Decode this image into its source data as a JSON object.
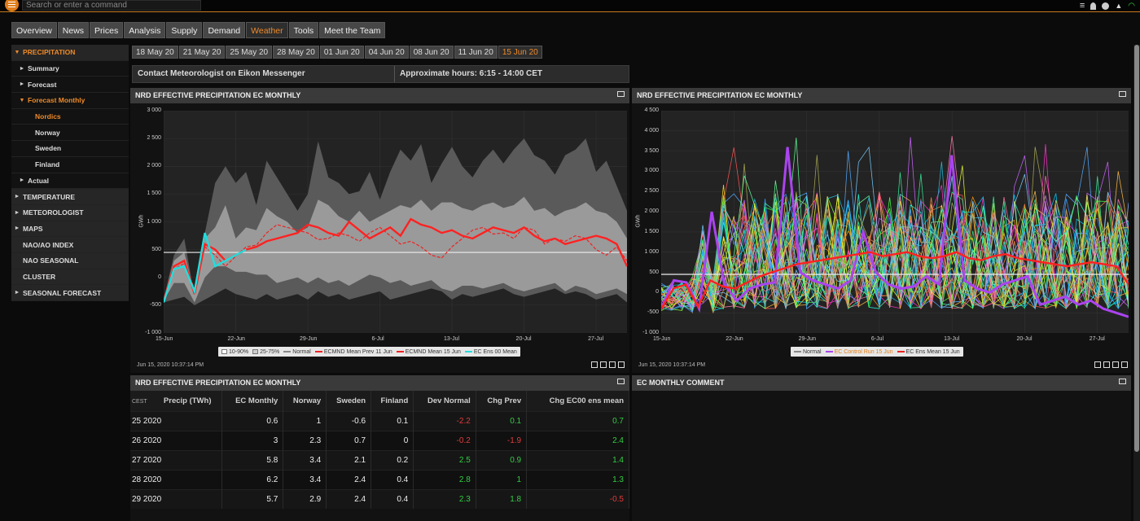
{
  "topbar": {
    "placeholder": "Search or enter a command"
  },
  "tabs": [
    "Overview",
    "News",
    "Prices",
    "Analysis",
    "Supply",
    "Demand",
    "Weather",
    "Tools",
    "Meet the Team"
  ],
  "active_tab": 6,
  "sidebar": [
    {
      "label": "PRECIPITATION",
      "level": 0,
      "arrow": "down",
      "sel": true
    },
    {
      "label": "Summary",
      "level": 1,
      "arrow": "right"
    },
    {
      "label": "Forecast",
      "level": 1,
      "arrow": "right"
    },
    {
      "label": "Forecast Monthly",
      "level": 1,
      "arrow": "down",
      "sel": true
    },
    {
      "label": "Nordics",
      "level": 2,
      "sel": true
    },
    {
      "label": "Norway",
      "level": 2
    },
    {
      "label": "Sweden",
      "level": 2
    },
    {
      "label": "Finland",
      "level": 2
    },
    {
      "label": "Actual",
      "level": 1,
      "arrow": "right"
    },
    {
      "label": "TEMPERATURE",
      "level": 0,
      "arrow": "right"
    },
    {
      "label": "METEOROLOGIST",
      "level": 0,
      "arrow": "right"
    },
    {
      "label": "MAPS",
      "level": 0,
      "arrow": "right"
    },
    {
      "label": "NAO/AO INDEX",
      "level": 0
    },
    {
      "label": "NAO SEASONAL",
      "level": 0
    },
    {
      "label": "CLUSTER",
      "level": 0
    },
    {
      "label": "SEASONAL FORECAST",
      "level": 0,
      "arrow": "right"
    }
  ],
  "dates": [
    "18 May 20",
    "21 May 20",
    "25 May 20",
    "28 May 20",
    "01 Jun 20",
    "04 Jun 20",
    "08 Jun 20",
    "11 Jun 20",
    "15 Jun 20"
  ],
  "active_date": 8,
  "contact": {
    "left": "Contact Meteorologist on Eikon Messenger",
    "right": "Approximate hours: 6:15 - 14:00 CET"
  },
  "chart1": {
    "title": "NRD EFFECTIVE PRECIPITATION EC MONTHLY",
    "stamp": "Jun 15, 2020 10:37:14 PM",
    "ylabel": "GWh",
    "yticks": [
      "3 000",
      "2 500",
      "2 000",
      "1 500",
      "1 000",
      "500",
      "0",
      "-500",
      "-1 000"
    ],
    "xticks": [
      "15-Jun",
      "22-Jun",
      "29-Jun",
      "6-Jul",
      "13-Jul",
      "20-Jul",
      "27-Jul"
    ],
    "legend": [
      "10-90%",
      "25-75%",
      "Normal",
      "ECMND Mean Prev 11 Jun",
      "ECMND Mean 15 Jun",
      "EC Ens 00 Mean"
    ]
  },
  "chart2": {
    "title": "NRD EFFECTIVE PRECIPITATION EC MONTHLY",
    "stamp": "Jun 15, 2020 10:37:14 PM",
    "ylabel": "GWh",
    "yticks": [
      "4 500",
      "4 000",
      "3 500",
      "3 000",
      "2 500",
      "2 000",
      "1 500",
      "1 000",
      "500",
      "0",
      "-500",
      "-1 000"
    ],
    "xticks": [
      "15-Jun",
      "22-Jun",
      "29-Jun",
      "6-Jul",
      "13-Jul",
      "20-Jul",
      "27-Jul"
    ],
    "legend": [
      "Normal",
      "EC Control Run 15 Jun",
      "EC Ens Mean 15 Jun"
    ]
  },
  "chart_data": [
    {
      "type": "area",
      "ylabel": "GWh",
      "ylim": [
        -1000,
        3000
      ],
      "x_days": [
        0,
        1,
        2,
        3,
        4,
        5,
        6,
        7,
        8,
        9,
        10,
        11,
        12,
        13,
        14,
        15,
        16,
        17,
        18,
        19,
        20,
        21,
        22,
        23,
        24,
        25,
        26,
        27,
        28,
        29,
        30,
        31,
        32,
        33,
        34,
        35,
        36,
        37,
        38,
        39,
        40,
        41,
        42,
        43,
        44,
        45
      ],
      "series": [
        {
          "name": "10-90%",
          "upper": [
            -400,
            400,
            700,
            -350,
            800,
            1700,
            2000,
            1700,
            1900,
            1300,
            2100,
            1800,
            1500,
            1200,
            1500,
            2450,
            1800,
            1700,
            1500,
            1550,
            1900,
            1400,
            1900,
            2300,
            2100,
            2400,
            1700,
            2050,
            2350,
            2000,
            1800,
            2100,
            2300,
            2050,
            2300,
            2500,
            2200,
            2100,
            1850,
            2200,
            2300,
            2500,
            1900,
            2100,
            1650,
            1200
          ],
          "lower": [
            -450,
            -400,
            -350,
            -500,
            -400,
            -300,
            -200,
            -300,
            -350,
            -400,
            -300,
            -400,
            -350,
            -300,
            -400,
            -250,
            -350,
            -300,
            -400,
            -350,
            -300,
            -250,
            -400,
            -350,
            -300,
            -250,
            -200,
            -250,
            -400,
            -300,
            -350,
            -300,
            -250,
            -200,
            -300,
            -350,
            -300,
            -250,
            -200,
            -300,
            -250,
            -300,
            -400,
            -350,
            -300,
            -450
          ]
        },
        {
          "name": "25-75%",
          "upper": [
            -380,
            300,
            450,
            -300,
            700,
            900,
            1300,
            700,
            900,
            850,
            1250,
            1100,
            1000,
            800,
            900,
            1400,
            1300,
            1100,
            1000,
            1200,
            1000,
            1100,
            1200,
            1300,
            1250,
            1400,
            1200,
            1350,
            1350,
            1250,
            1200,
            1300,
            1350,
            1250,
            1300,
            1450,
            1200,
            1250,
            1100,
            1200,
            1250,
            1350,
            1200,
            1150,
            1000,
            700
          ],
          "lower": [
            -420,
            -100,
            -100,
            -450,
            0,
            200,
            200,
            100,
            100,
            50,
            50,
            -100,
            -50,
            0,
            -100,
            0,
            -100,
            -50,
            -150,
            -50,
            50,
            0,
            -100,
            -50,
            -150,
            -100,
            -50,
            -200,
            -250,
            -150,
            -150,
            -200,
            -150,
            -100,
            -200,
            -250,
            -200,
            -150,
            -100,
            -250,
            -150,
            -200,
            -300,
            -250,
            -200,
            -300
          ]
        },
        {
          "name": "Normal",
          "values_const": 450
        },
        {
          "name": "ECMND Mean Prev 11 Jun",
          "values": [
            -380,
            150,
            250,
            -200,
            550,
            400,
            200,
            380,
            550,
            580,
            800,
            950,
            900,
            850,
            800,
            680,
            700,
            800,
            750,
            650,
            800,
            900,
            750,
            600,
            650,
            550,
            400,
            350,
            550,
            700,
            850,
            900,
            780,
            800,
            700,
            900,
            850,
            600,
            700,
            650,
            750,
            700,
            500,
            400,
            550,
            300
          ]
        },
        {
          "name": "ECMND Mean 15 Jun",
          "values": [
            -420,
            200,
            300,
            -300,
            600,
            500,
            300,
            400,
            500,
            550,
            650,
            700,
            750,
            800,
            950,
            900,
            800,
            750,
            1000,
            850,
            700,
            800,
            900,
            750,
            1050,
            950,
            900,
            800,
            850,
            750,
            700,
            800,
            900,
            850,
            800,
            900,
            750,
            650,
            700,
            600,
            650,
            700,
            750,
            700,
            600,
            200
          ]
        },
        {
          "name": "EC Ens 00 Mean",
          "values": [
            -450,
            150,
            200,
            -250,
            800,
            200,
            300,
            400,
            500
          ]
        }
      ]
    },
    {
      "type": "line",
      "ylabel": "GWh",
      "ylim": [
        -1000,
        4500
      ],
      "series": [
        {
          "name": "Normal",
          "values_const": 450
        },
        {
          "name": "EC Control Run 15 Jun",
          "values": [
            -400,
            300,
            250,
            -400,
            2000,
            200,
            -200,
            100,
            200,
            250,
            3600,
            500,
            300,
            200,
            100,
            300,
            1500,
            500,
            200,
            100,
            150,
            400,
            200,
            3400,
            300,
            100,
            0,
            200,
            300,
            400,
            -300,
            -200,
            -100,
            -300,
            -200,
            -400,
            -500,
            -600
          ]
        },
        {
          "name": "EC Ens Mean 15 Jun",
          "values": [
            -400,
            100,
            200,
            -350,
            300,
            150,
            100,
            250,
            400,
            500,
            600,
            700,
            750,
            800,
            850,
            900,
            950,
            1000,
            900,
            950,
            1000,
            900,
            850,
            900,
            1000,
            850,
            800,
            900,
            950,
            850,
            800,
            750,
            700,
            650,
            700,
            750,
            700,
            650,
            200
          ]
        }
      ]
    }
  ],
  "table": {
    "title": "NRD EFFECTIVE PRECIPITATION EC MONTHLY",
    "tz": "CEST",
    "headers": [
      "Precip (TWh)",
      "EC Monthly",
      "Norway",
      "Sweden",
      "Finland",
      "Dev Normal",
      "Chg Prev",
      "Chg EC00 ens mean"
    ],
    "rows": [
      [
        "25 2020",
        "0.6",
        "1",
        "-0.6",
        "0.1",
        "-2.2",
        "0.1",
        "0.7"
      ],
      [
        "26 2020",
        "3",
        "2.3",
        "0.7",
        "0",
        "-0.2",
        "-1.9",
        "2.4"
      ],
      [
        "27 2020",
        "5.8",
        "3.4",
        "2.1",
        "0.2",
        "2.5",
        "0.9",
        "1.4"
      ],
      [
        "28 2020",
        "6.2",
        "3.4",
        "2.4",
        "0.4",
        "2.8",
        "1",
        "1.3"
      ],
      [
        "29 2020",
        "5.7",
        "2.9",
        "2.4",
        "0.4",
        "2.3",
        "1.8",
        "-0.5"
      ]
    ]
  },
  "comment": {
    "title": "EC MONTHLY COMMENT"
  }
}
